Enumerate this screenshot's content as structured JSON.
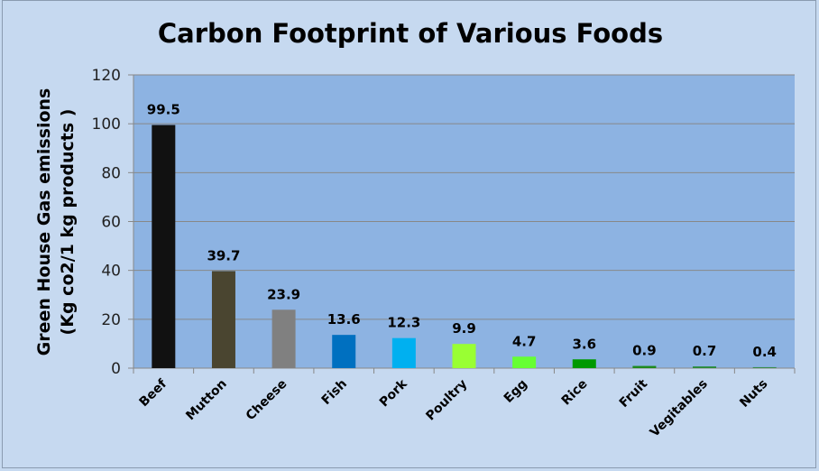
{
  "chart_data": {
    "type": "bar",
    "title": "Carbon Footprint of Various Foods",
    "xlabel": "",
    "ylabel_lines": [
      "Green House Gas emissions",
      "(Kg co2/1 kg products )"
    ],
    "ylim": [
      0,
      120
    ],
    "yticks": [
      0,
      20,
      40,
      60,
      80,
      100,
      120
    ],
    "grid": true,
    "categories": [
      "Beef",
      "Mutton",
      "Cheese",
      "Fish",
      "Pork",
      "Poultry",
      "Egg",
      "Rice",
      "Fruit",
      "Vegitables",
      "Nuts"
    ],
    "values": [
      99.5,
      39.7,
      23.9,
      13.6,
      12.3,
      9.9,
      4.7,
      3.6,
      0.9,
      0.7,
      0.4
    ],
    "value_labels": [
      "99.5",
      "39.7",
      "23.9",
      "13.6",
      "12.3",
      "9.9",
      "4.7",
      "3.6",
      "0.9",
      "0.7",
      "0.4"
    ],
    "colors": [
      "#111111",
      "#4a4530",
      "#808080",
      "#0070c0",
      "#00b0f0",
      "#99ff33",
      "#66ff33",
      "#009900",
      "#1e8a1e",
      "#2a8a3a",
      "#3a8a4a"
    ],
    "plot_background": "#8db3e2",
    "page_background": "#c6d9f0"
  }
}
